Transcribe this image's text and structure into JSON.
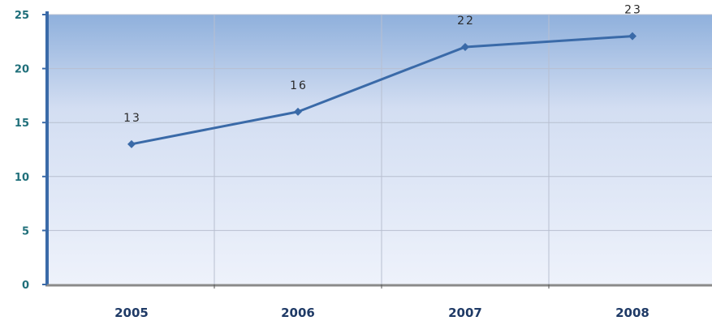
{
  "chart_data": {
    "type": "line",
    "categories": [
      "2005",
      "2006",
      "2007",
      "2008"
    ],
    "series": [
      {
        "values": [
          13,
          16,
          22,
          23
        ]
      }
    ],
    "data_labels": [
      "13",
      "16",
      "22",
      "23"
    ],
    "y_ticks": [
      0,
      5,
      10,
      15,
      20,
      25
    ],
    "ylim": [
      0,
      25
    ],
    "grid": true,
    "colors": {
      "line": "#3a6aa8",
      "plot_top": "#8fb0dc",
      "plot_bottom": "#eef2fb",
      "grid": "#b8bfd0",
      "axis": "#3a6aa8",
      "y_tick_text": "#1f6f7a",
      "x_tick_text": "#1f3a66"
    }
  }
}
